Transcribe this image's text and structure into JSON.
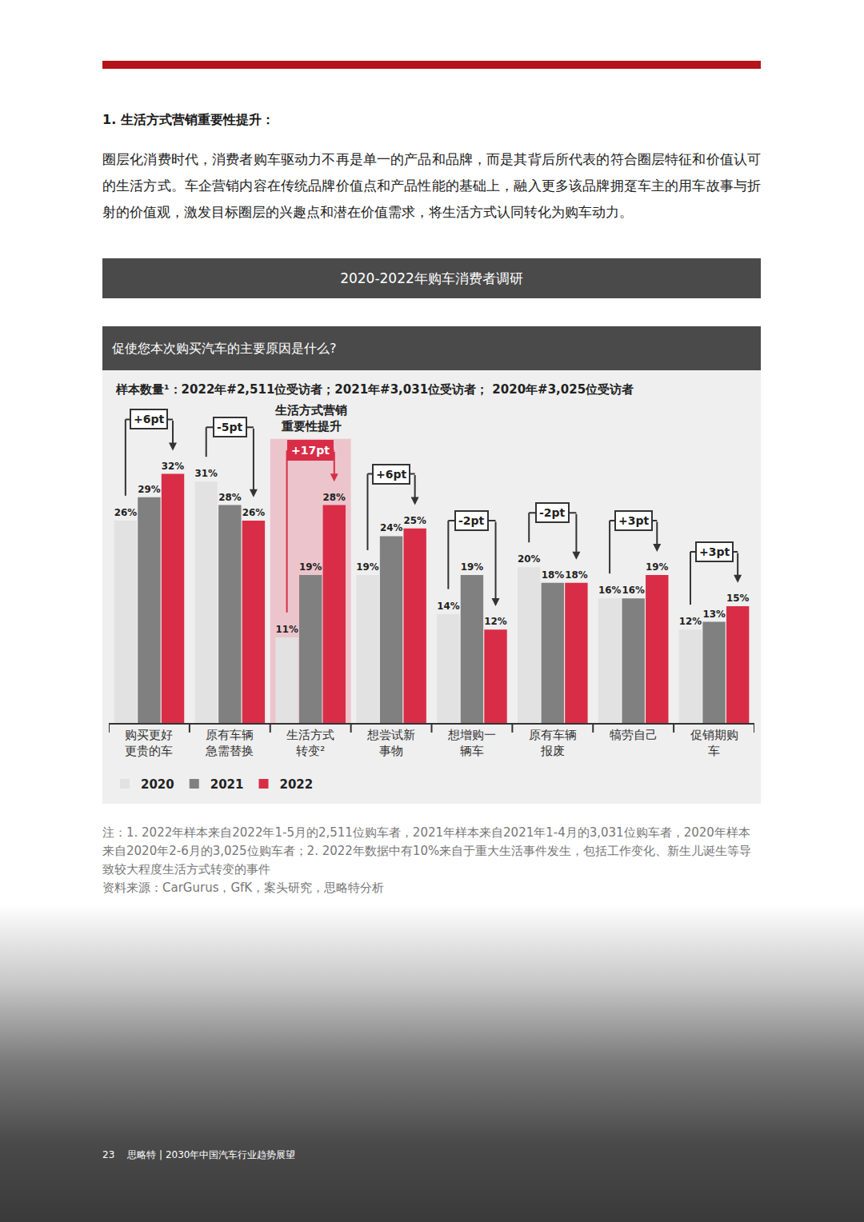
{
  "page": {
    "heading": "1. 生活方式营销重要性提升：",
    "paragraph": "圈层化消费时代，消费者购车驱动力不再是单一的产品和品牌，而是其背后所代表的符合圈层特征和价值认可的生活方式。车企营销内容在传统品牌价值点和产品性能的基础上，融入更多该品牌拥趸车主的用车故事与折射的价值观，激发目标圈层的兴趣点和潜在价值需求，将生活方式认同转化为购车动力。",
    "banner": "2020-2022年购车消费者调研",
    "question": "促使您本次购买汽车的主要原因是什么?",
    "sample": "样本数量¹：2022年#2,511位受访者；2021年#3,031位受访者； 2020年#3,025位受访者",
    "notes": [
      "注：1. 2022年样本来自2022年1-5月的2,511位购车者，2021年样本来自2021年1-4月的3,031位购车者，2020年样本来自2020年2-6月的3,025位购车者；2. 2022年数据中有10%来自于重大生活事件发生，包括工作变化、新生儿诞生等导致较大程度生活方式转变的事件",
      "资料来源：CarGurus，GfK，案头研究，思略特分析"
    ],
    "footer": {
      "page_number": "23",
      "text": "思略特 | 2030年中国汽车行业趋势展望"
    }
  },
  "chart_data": {
    "type": "bar",
    "categories": [
      "购买更好更贵的车",
      "原有车辆急需替换",
      "生活方式转变²",
      "想尝试新事物",
      "想增购一辆车",
      "原有车辆报废",
      "犒劳自己",
      "促销期购车"
    ],
    "series": [
      {
        "name": "2020",
        "color": "#e2e2e2",
        "values": [
          26,
          31,
          11,
          19,
          14,
          20,
          16,
          12
        ],
        "value_labels": [
          "26%",
          "31%",
          "11%",
          "19%",
          "14%",
          "20%",
          "16%",
          "12%"
        ]
      },
      {
        "name": "2021",
        "color": "#808080",
        "values": [
          29,
          28,
          19,
          24,
          19,
          18,
          16,
          13
        ],
        "value_labels": [
          "29%",
          "28%",
          "19%",
          "24%",
          "19%",
          "18%",
          "16%",
          "13%"
        ]
      },
      {
        "name": "2022",
        "color": "#d92d47",
        "values": [
          32,
          26,
          28,
          25,
          12,
          18,
          19,
          15
        ],
        "value_labels": [
          "32%",
          "26%",
          "28%",
          "25%",
          "12%",
          "18%",
          "19%",
          "15%"
        ]
      }
    ],
    "change_labels": [
      "+6pt",
      "-5pt",
      "+17pt",
      "+6pt",
      "-2pt",
      "-2pt",
      "+3pt",
      "+3pt"
    ],
    "highlight": {
      "category": "生活方式转变²",
      "text": "生活方式营销重要性提升"
    },
    "ylim": [
      0,
      41
    ],
    "tick_labels": "x",
    "data_labels": true,
    "legend": "bottom-left"
  }
}
